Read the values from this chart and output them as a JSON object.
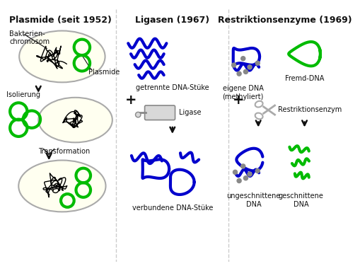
{
  "title_left": "Plasmide (seit 1952)",
  "title_mid": "Ligasen (1967)",
  "title_right": "Restriktionsenzyme (1969)",
  "label_bakterien": "Bakterien-\nchromosom",
  "label_plasmide": "Plasmide",
  "label_isolierung": "Isolierung",
  "label_transformation": "Transformation",
  "label_getrennte": "getrennte DNA-Stüke",
  "label_ligase": "Ligase",
  "label_plus": "+",
  "label_verbundene": "verbundene DNA-Stüke",
  "label_eigene": "eigene DNA\n(methyliert)",
  "label_fremd": "Fremd-DNA",
  "label_restrikt": "Restriktionsenzym",
  "label_ungeschnittene": "ungeschnittene\nDNA",
  "label_geschnittene": "geschnittene\nDNA",
  "color_green": "#00bb00",
  "color_blue": "#0000cc",
  "color_gray": "#888888",
  "color_cell": "#fffff0",
  "color_cell_border": "#aaaaaa",
  "color_black": "#111111",
  "color_white": "#ffffff",
  "color_tube": "#d8d8d8",
  "color_scissors": "#aaaaaa"
}
